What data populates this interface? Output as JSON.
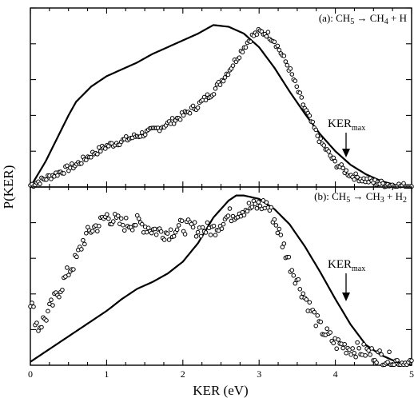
{
  "chart_data": {
    "type": "line",
    "xlabel": "KER (eV)",
    "ylabel": "P(KER)",
    "xlim": [
      0,
      5
    ],
    "x_ticks": [
      0,
      1,
      2,
      3,
      4,
      5
    ],
    "x_tick_labels": [
      "0",
      "1",
      "2",
      "3",
      "4",
      "5"
    ],
    "y_tick_labels_shown": false,
    "grid": false,
    "legend": "none",
    "panels": [
      {
        "id": "a",
        "label": {
          "prefix": "(a): CH",
          "sub1": "5",
          "arrow": " → CH",
          "sub2": "4",
          "suffix": " + H"
        },
        "ylim": [
          0,
          1.05
        ],
        "ker_max": {
          "text": "KER",
          "sub": "max",
          "x": 4.1
        },
        "series": [
          {
            "style": "solid-line",
            "x": [
              0,
              0.2,
              0.4,
              0.5,
              0.6,
              0.8,
              1.0,
              1.2,
              1.4,
              1.6,
              1.8,
              2.0,
              2.2,
              2.4,
              2.6,
              2.8,
              3.0,
              3.2,
              3.4,
              3.6,
              3.8,
              4.0,
              4.2,
              4.4,
              4.6,
              4.8,
              5.0
            ],
            "y": [
              0.0,
              0.15,
              0.33,
              0.42,
              0.5,
              0.59,
              0.65,
              0.69,
              0.73,
              0.78,
              0.82,
              0.86,
              0.9,
              0.95,
              0.94,
              0.9,
              0.82,
              0.7,
              0.56,
              0.43,
              0.31,
              0.21,
              0.13,
              0.075,
              0.035,
              0.01,
              0.0
            ]
          },
          {
            "style": "open-circles",
            "x": [
              0,
              0.2,
              0.4,
              0.6,
              0.8,
              1.0,
              1.2,
              1.4,
              1.6,
              1.8,
              2.0,
              2.2,
              2.4,
              2.6,
              2.8,
              2.9,
              3.0,
              3.1,
              3.2,
              3.4,
              3.6,
              3.8,
              4.0,
              4.2,
              4.4,
              4.6,
              4.8,
              5.0
            ],
            "y": [
              0.01,
              0.05,
              0.09,
              0.13,
              0.19,
              0.24,
              0.27,
              0.3,
              0.33,
              0.37,
              0.42,
              0.48,
              0.56,
              0.68,
              0.82,
              0.88,
              0.91,
              0.9,
              0.86,
              0.69,
              0.46,
              0.27,
              0.14,
              0.07,
              0.04,
              0.02,
              0.01,
              0.0
            ]
          }
        ]
      },
      {
        "id": "b",
        "label": {
          "prefix": "(b): CH",
          "sub1": "5",
          "arrow": " → CH",
          "sub2": "3",
          "suffix": " + H",
          "sub3": "2"
        },
        "ylim": [
          0,
          1.05
        ],
        "ker_max": {
          "text": "KER",
          "sub": "max",
          "x": 4.1
        },
        "series": [
          {
            "style": "solid-line",
            "x": [
              0,
              0.2,
              0.4,
              0.6,
              0.8,
              1.0,
              1.2,
              1.4,
              1.6,
              1.8,
              2.0,
              2.2,
              2.4,
              2.6,
              2.7,
              2.8,
              3.0,
              3.2,
              3.4,
              3.6,
              3.8,
              4.0,
              4.2,
              4.4,
              4.6,
              4.8,
              5.0
            ],
            "y": [
              0.02,
              0.08,
              0.14,
              0.2,
              0.26,
              0.32,
              0.39,
              0.45,
              0.49,
              0.54,
              0.61,
              0.72,
              0.87,
              0.97,
              1.0,
              1.0,
              0.98,
              0.92,
              0.83,
              0.7,
              0.55,
              0.39,
              0.24,
              0.12,
              0.06,
              0.02,
              0.0
            ]
          },
          {
            "style": "open-circles",
            "x": [
              0,
              0.1,
              0.2,
              0.3,
              0.4,
              0.5,
              0.6,
              0.7,
              0.8,
              0.9,
              1.0,
              1.2,
              1.4,
              1.6,
              1.8,
              2.0,
              2.2,
              2.4,
              2.6,
              2.8,
              3.0,
              3.1,
              3.2,
              3.4,
              3.6,
              3.8,
              4.0,
              4.2,
              4.4,
              4.6,
              4.8,
              5.0
            ],
            "y": [
              0.38,
              0.22,
              0.28,
              0.37,
              0.46,
              0.55,
              0.62,
              0.74,
              0.8,
              0.83,
              0.88,
              0.83,
              0.84,
              0.8,
              0.78,
              0.82,
              0.8,
              0.8,
              0.88,
              0.92,
              0.94,
              0.95,
              0.86,
              0.6,
              0.4,
              0.22,
              0.13,
              0.1,
              0.08,
              0.05,
              0.02,
              0.01
            ]
          }
        ]
      }
    ]
  }
}
